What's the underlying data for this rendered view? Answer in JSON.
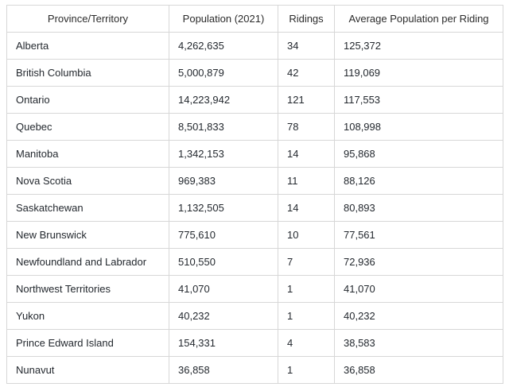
{
  "table": {
    "headers": [
      "Province/Territory",
      "Population (2021)",
      "Ridings",
      "Average Population per Riding"
    ],
    "rows": [
      [
        "Alberta",
        "4,262,635",
        "34",
        "125,372"
      ],
      [
        "British Columbia",
        "5,000,879",
        "42",
        "119,069"
      ],
      [
        "Ontario",
        "14,223,942",
        "121",
        "117,553"
      ],
      [
        "Quebec",
        "8,501,833",
        "78",
        "108,998"
      ],
      [
        "Manitoba",
        "1,342,153",
        "14",
        "95,868"
      ],
      [
        "Nova Scotia",
        "969,383",
        "11",
        "88,126"
      ],
      [
        "Saskatchewan",
        "1,132,505",
        "14",
        "80,893"
      ],
      [
        "New Brunswick",
        "775,610",
        "10",
        "77,561"
      ],
      [
        "Newfoundland and Labrador",
        "510,550",
        "7",
        "72,936"
      ],
      [
        "Northwest Territories",
        "41,070",
        "1",
        "41,070"
      ],
      [
        "Yukon",
        "40,232",
        "1",
        "40,232"
      ],
      [
        "Prince Edward Island",
        "154,331",
        "4",
        "38,583"
      ],
      [
        "Nunavut",
        "36,858",
        "1",
        "36,858"
      ]
    ]
  },
  "colors": {
    "border": "#d7d7d7",
    "text": "#24292f",
    "background": "#ffffff"
  }
}
